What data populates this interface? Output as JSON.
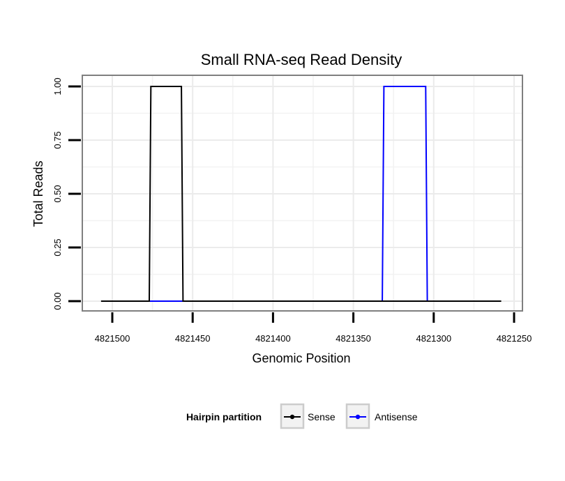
{
  "chart_data": {
    "type": "line",
    "title": "Small RNA-seq Read Density",
    "xlabel": "Genomic Position",
    "ylabel": "Total Reads",
    "x_reversed": true,
    "xlim": [
      4821525,
      4821245
    ],
    "ylim": [
      -0.05,
      1.05
    ],
    "x_ticks": [
      4821500,
      4821450,
      4821400,
      4821350,
      4821300,
      4821250
    ],
    "x_tick_labels": [
      "4821500",
      "4821450",
      "4821400",
      "4821350",
      "4821300",
      "4821250"
    ],
    "y_ticks": [
      0,
      0.25,
      0.5,
      0.75,
      1.0
    ],
    "y_tick_labels": [
      "0.00",
      "0.25",
      "0.50",
      "0.75",
      "1.00"
    ],
    "grid": true,
    "series": [
      {
        "name": "Sense",
        "color": "#000000",
        "x": [
          4821507,
          4821477,
          4821476,
          4821457,
          4821456,
          4821258
        ],
        "y": [
          0,
          0,
          1,
          1,
          0,
          0
        ]
      },
      {
        "name": "Antisense",
        "color": "#0000ff",
        "x": [
          4821477,
          4821456,
          4821456,
          4821332,
          4821331,
          4821305,
          4821304,
          4821304
        ],
        "y": [
          0,
          0,
          0,
          0,
          1,
          1,
          0,
          0
        ]
      }
    ],
    "legend": {
      "title": "Hairpin partition",
      "position": "bottom",
      "entries": [
        "Sense",
        "Antisense"
      ]
    }
  }
}
